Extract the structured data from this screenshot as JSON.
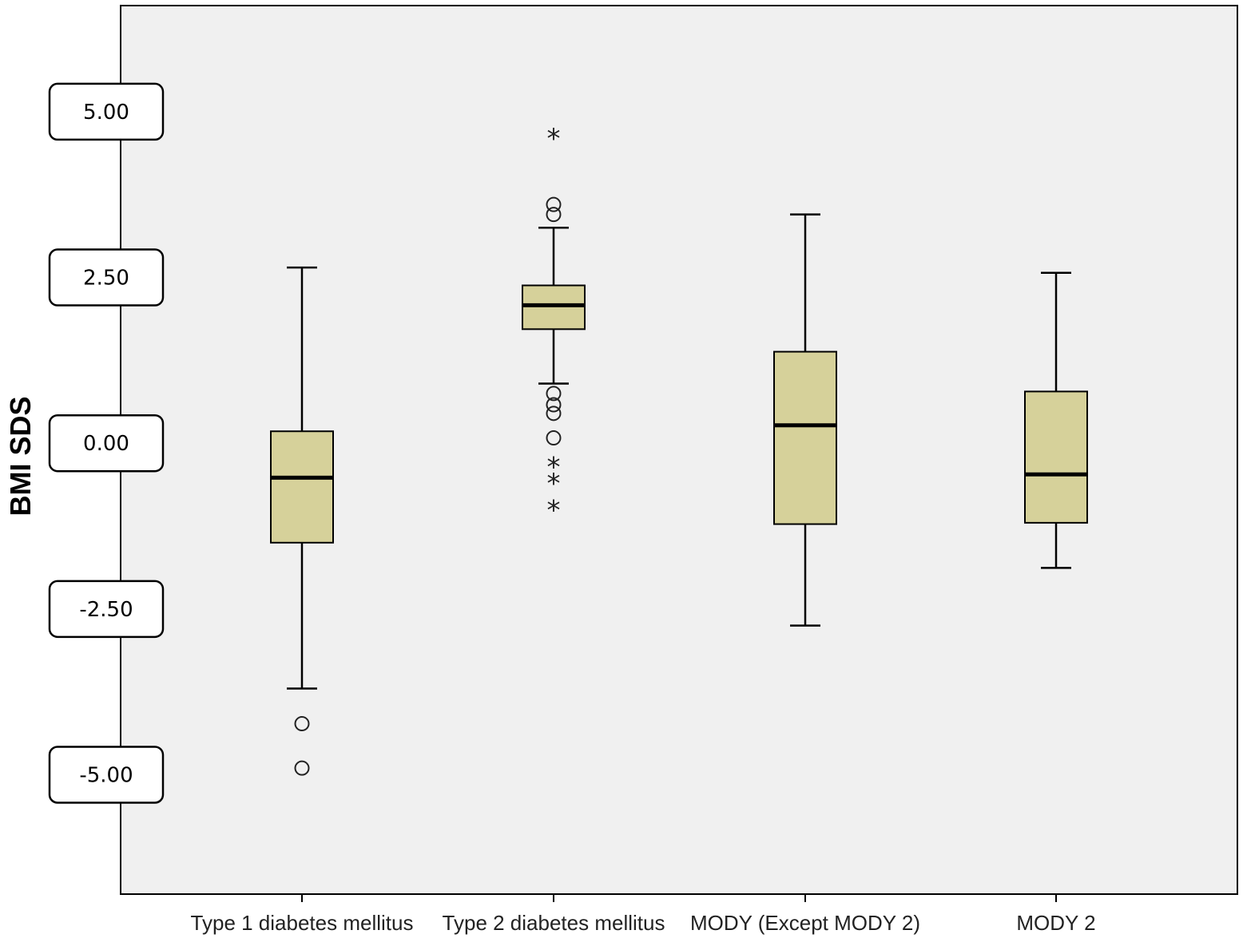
{
  "chart_data": {
    "type": "box",
    "title": "",
    "xlabel": "",
    "ylabel": "BMI SDS",
    "ylim": [
      -6.8,
      6.6
    ],
    "y_ticks": [
      "5.00",
      "2.50",
      "0.00",
      "-2.50",
      "-5.00"
    ],
    "grid": false,
    "legend": "none",
    "colors": {
      "plot_background": "#f0f0f0",
      "box_fill": "#d6d19a",
      "stroke": "#000000",
      "outlier": "#222222"
    },
    "categories": [
      "Type 1 diabetes mellitus",
      "Type 2 diabetes mellitus",
      "MODY (Except MODY 2)",
      "MODY 2"
    ],
    "boxes": [
      {
        "min": -3.7,
        "q1": -1.5,
        "median": -0.52,
        "q3": 0.18,
        "max": 2.65,
        "outliers_circle": [
          -4.23,
          -4.9
        ],
        "outliers_star": []
      },
      {
        "min": 0.9,
        "q1": 1.72,
        "median": 2.08,
        "q3": 2.38,
        "max": 3.25,
        "outliers_circle": [
          3.6,
          3.45,
          0.75,
          0.58,
          0.45,
          0.08
        ],
        "outliers_star": [
          4.6,
          -0.35,
          -0.6,
          -1.0
        ]
      },
      {
        "min": -2.75,
        "q1": -1.22,
        "median": 0.27,
        "q3": 1.38,
        "max": 3.45,
        "outliers_circle": [],
        "outliers_star": []
      },
      {
        "min": -1.88,
        "q1": -1.2,
        "median": -0.47,
        "q3": 0.78,
        "max": 2.57,
        "outliers_circle": [],
        "outliers_star": []
      }
    ]
  }
}
